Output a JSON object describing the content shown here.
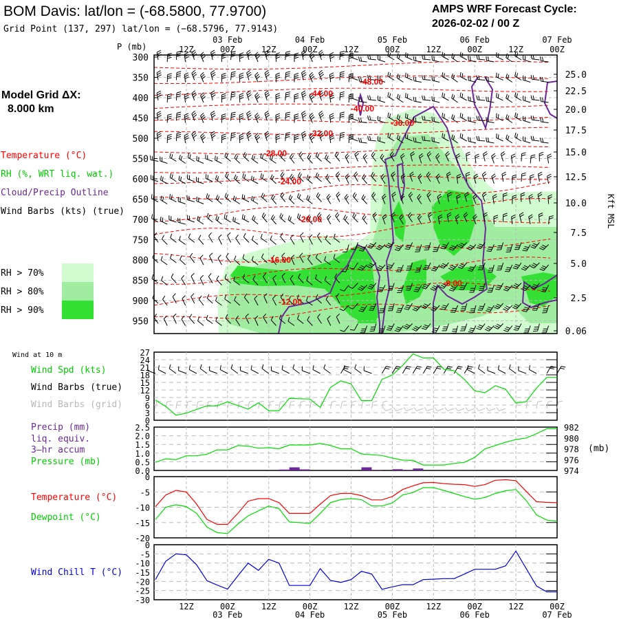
{
  "header": {
    "title": "BOM Davis:  lat/lon = (-68.5800, 77.9700)",
    "grid_point": "Grid Point (137, 297) lat/lon = (−68.5796, 77.9143)",
    "cycle_label": "AMPS WRF Forecast Cycle:",
    "cycle_value": "2026-02-02 / 00  Z"
  },
  "time_axis": {
    "hour_labels": [
      "12Z",
      "00Z",
      "12Z",
      "00Z",
      "12Z",
      "00Z",
      "12Z",
      "00Z",
      "12Z",
      "00Z"
    ],
    "date_labels": [
      "03 Feb",
      "04 Feb",
      "05 Feb",
      "06 Feb",
      "07 Feb"
    ]
  },
  "main": {
    "p_axis_title": "P (mb)",
    "pressure_labels": [
      "300",
      "350",
      "400",
      "450",
      "500",
      "550",
      "600",
      "650",
      "700",
      "750",
      "800",
      "850",
      "900",
      "950"
    ],
    "kft_labels": [
      "25.0",
      "22.5",
      "20.0",
      "17.5",
      "15.0",
      "12.5",
      "10.0",
      "7.5",
      "5.0",
      "2.5",
      "0.06"
    ],
    "kft_title": "Kft MSL",
    "model_grid_label": "Model Grid ΔX:",
    "model_grid_value": "8.000 km",
    "legend": {
      "temperature": "Temperature (°C)",
      "rh": "RH (%, WRT liq. wat.)",
      "cloud": "Cloud/Precip Outline",
      "wind": "Wind Barbs (kts) (true)"
    },
    "rh_legend": [
      {
        "label": "RH > 70%",
        "color": "#d0fcd0"
      },
      {
        "label": "RH > 80%",
        "color": "#a0eca0"
      },
      {
        "label": "RH > 90%",
        "color": "#33e033"
      }
    ],
    "isotherm_labels": [
      "-48.00",
      "-44.00",
      "-40.00",
      "-36.00",
      "-32.00",
      "-28.00",
      "-24.00",
      "-20.00",
      "-16.00",
      "-12.00",
      "-8.00"
    ]
  },
  "bottom_legend": {
    "wind_at": "Wind at 10 m",
    "wind_spd": "Wind Spd (kts)",
    "barbs_true": "Wind Barbs (true)",
    "barbs_grid": "Wind Barbs (grid)",
    "precip": "Precip (mm)",
    "liq": "liq. equiv.",
    "accum": "3—hr accum",
    "pressure": "Pressure (mb)",
    "mb_unit": "(mb)",
    "temperature": "Temperature (°C)",
    "dewpoint": "Dewpoint (°C)",
    "windchill": "Wind Chill T (°C)"
  },
  "colors": {
    "temperature": "#ff0000",
    "dewpoint": "#00dd00",
    "windchill": "#0000dd",
    "pressure": "#00dd00",
    "precip": "#6a2896",
    "cloud": "#6a2896",
    "grid_barbs": "#c0c0c0"
  },
  "chart_data": [
    {
      "type": "line",
      "title": "Wind at 10 m",
      "x_start": "2026-02-02 03Z",
      "x_interval_hours": 3,
      "ylim": [
        0,
        27
      ],
      "yticks": [
        "27",
        "24",
        "21",
        "18",
        "15",
        "12",
        "9",
        "6",
        "3",
        "0"
      ],
      "series": [
        {
          "name": "Wind Spd (kts)",
          "values": [
            8,
            5.5,
            2,
            2.8,
            4.3,
            5.7,
            5.7,
            7.3,
            5.8,
            4.4,
            6.9,
            3.8,
            3.8,
            8.7,
            8.5,
            8.4,
            5.1,
            13,
            15.6,
            14.4,
            7.8,
            7.8,
            16.2,
            17.9,
            21.7,
            26.3,
            24.7,
            24.7,
            20.2,
            19.6,
            16.2,
            11.7,
            10.9,
            13.7,
            12.3,
            6.8,
            7.4,
            12.8,
            17,
            17
          ]
        }
      ]
    },
    {
      "type": "bar+line",
      "title": "Precip / Pressure",
      "x_start": "2026-02-02 03Z",
      "x_interval_hours": 3,
      "ylim_left": [
        0,
        2.5
      ],
      "ylim_right": [
        974,
        982
      ],
      "yticks_left": [
        "2.5",
        "2.0",
        "1.5",
        "1.0",
        "0.5",
        "0.0"
      ],
      "yticks_right": [
        "982",
        "980",
        "978",
        "976",
        "974"
      ],
      "series": [
        {
          "name": "Precip (mm)",
          "values": [
            0,
            0,
            0,
            0,
            0,
            0,
            0,
            0,
            0,
            0,
            0,
            0,
            0,
            0.05,
            0.18,
            0.06,
            0,
            0,
            0,
            0,
            0,
            0.18,
            0.03,
            0,
            0.07,
            0.03,
            0.11,
            0,
            0,
            0,
            0,
            0,
            0,
            0,
            0,
            0,
            0,
            0,
            0,
            0
          ]
        },
        {
          "name": "Pressure (mb)",
          "values": [
            975.5,
            976.15,
            976,
            976.7,
            976.7,
            977,
            977.8,
            977.8,
            978.6,
            978.5,
            978.1,
            978.2,
            978,
            978.7,
            978.7,
            978.7,
            979,
            978.6,
            978,
            978,
            977.05,
            976.9,
            976.75,
            976.3,
            975.9,
            975.85,
            975,
            975,
            975,
            975.3,
            975.5,
            976.4,
            978,
            978.6,
            979.2,
            979.7,
            980,
            980.8,
            981.7,
            981.7
          ]
        }
      ]
    },
    {
      "type": "line",
      "title": "Temperature / Dewpoint",
      "x_start": "2026-02-02 03Z",
      "x_interval_hours": 3,
      "ylim": [
        -20,
        0
      ],
      "yticks": [
        "0",
        "-5",
        "-10",
        "-15",
        "-20"
      ],
      "series": [
        {
          "name": "Temperature (°C)",
          "values": [
            -9.8,
            -6,
            -4.5,
            -5,
            -9,
            -14,
            -15.6,
            -15.6,
            -12,
            -8,
            -7.2,
            -7.2,
            -8.5,
            -12,
            -12,
            -12,
            -9,
            -6.2,
            -5.5,
            -5.5,
            -6.2,
            -7.6,
            -7.6,
            -6.5,
            -4.2,
            -3,
            -2,
            -1.9,
            -2.3,
            -2.5,
            -2.6,
            -3.2,
            -2.6,
            -1.2,
            -1,
            -1.3,
            -4.8,
            -8.2,
            -8.4,
            -8.5
          ]
        },
        {
          "name": "Dewpoint (°C)",
          "values": [
            -14,
            -10,
            -9.2,
            -9.8,
            -12,
            -16.5,
            -18.3,
            -18.6,
            -15.5,
            -12.8,
            -11.2,
            -9.6,
            -10.5,
            -14.8,
            -15,
            -15.3,
            -12,
            -8.5,
            -7.5,
            -7.2,
            -7.5,
            -9.6,
            -9.6,
            -8.6,
            -6,
            -5.2,
            -3.6,
            -3.6,
            -4.5,
            -5.5,
            -6.5,
            -7.4,
            -6.8,
            -5.5,
            -4.6,
            -4.2,
            -7.8,
            -12.5,
            -14.2,
            -14.6
          ]
        }
      ]
    },
    {
      "type": "line",
      "title": "Wind Chill",
      "x_start": "2026-02-02 03Z",
      "x_interval_hours": 3,
      "ylim": [
        -30,
        0
      ],
      "yticks": [
        "0",
        "-5",
        "-10",
        "-15",
        "-20",
        "-25",
        "-30"
      ],
      "series": [
        {
          "name": "Wind Chill T (°C)",
          "values": [
            -19,
            -9,
            -5,
            -5.5,
            -11,
            -19.6,
            -22,
            -24.2,
            -17,
            -10,
            -14,
            -8,
            -10,
            -22.2,
            -22.2,
            -22.2,
            -13,
            -19.5,
            -20.5,
            -19,
            -14.5,
            -16,
            -24.3,
            -23,
            -21.8,
            -21.8,
            -19,
            -18.8,
            -18.5,
            -18.5,
            -16,
            -13.4,
            -13.4,
            -13.4,
            -11.5,
            -3.5,
            -13,
            -22.5,
            -25.7,
            -25.7
          ]
        }
      ]
    }
  ]
}
